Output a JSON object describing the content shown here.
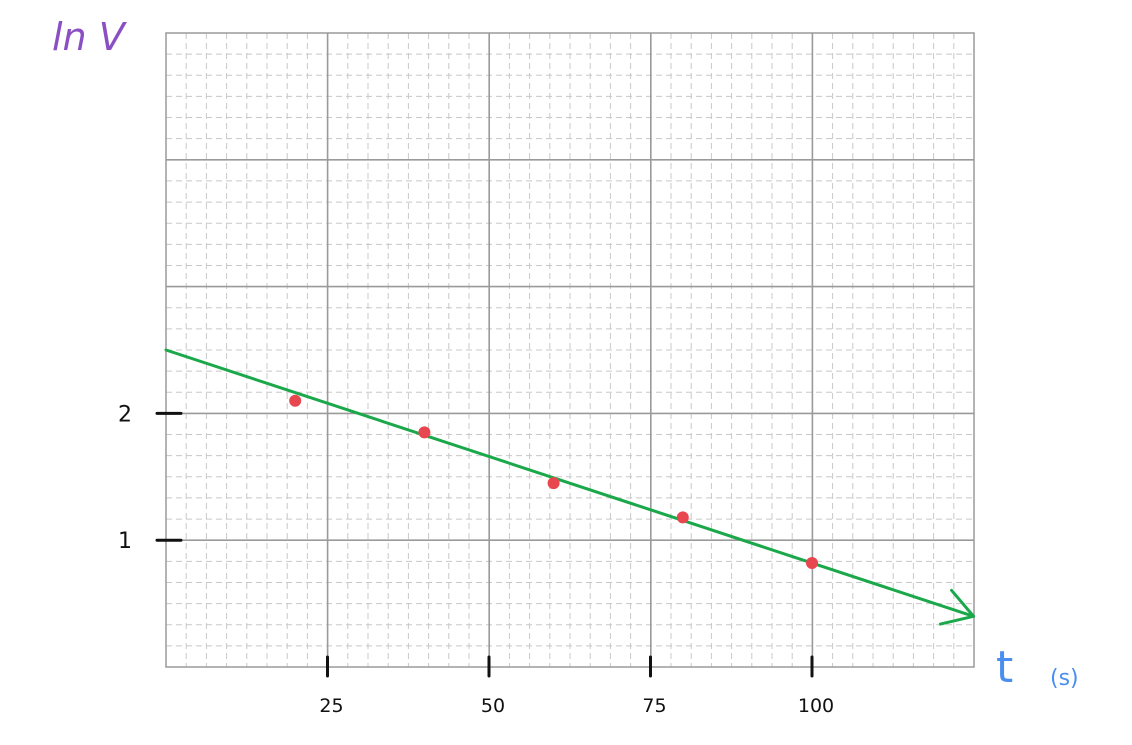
{
  "chart_data": {
    "type": "scatter",
    "ylabel": "ln V",
    "xlabel": "t",
    "xunit": "(s)",
    "x_ticks": [
      25,
      50,
      75,
      100
    ],
    "y_ticks": [
      1,
      2
    ],
    "xlim": [
      0,
      125
    ],
    "ylim": [
      0,
      5
    ],
    "grid": true,
    "points": [
      {
        "x": 20,
        "y": 2.1
      },
      {
        "x": 40,
        "y": 1.85
      },
      {
        "x": 60,
        "y": 1.45
      },
      {
        "x": 80,
        "y": 1.18
      },
      {
        "x": 100,
        "y": 0.82
      }
    ],
    "fit_line": {
      "x0": 0,
      "y0": 2.5,
      "x1": 125,
      "y1": 0.4
    },
    "colors": {
      "points": "#e8474f",
      "fit_line": "#1aa84a",
      "ylabel": "#8b4fc4",
      "xlabel": "#4a8ef0",
      "grid": "#9a9a9a",
      "ticks": "#111111"
    }
  }
}
